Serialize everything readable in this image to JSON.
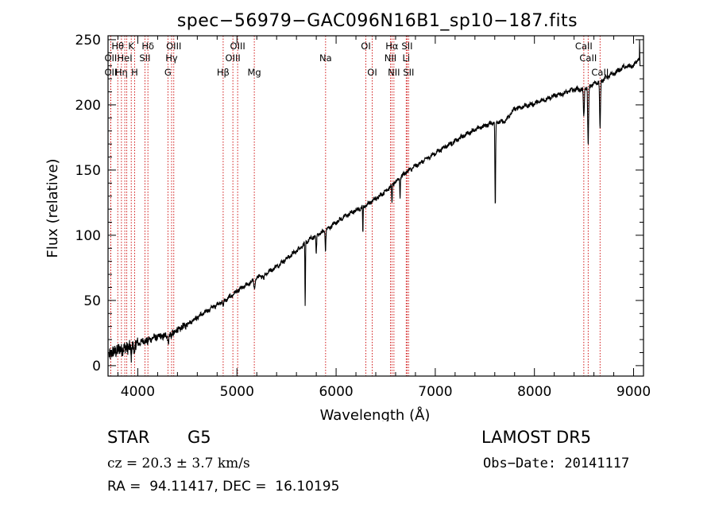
{
  "chart_data": {
    "type": "line",
    "title": "spec−56979−GAC096N16B1_sp10−187.fits",
    "xlabel": "Wavelength (Å)",
    "ylabel": "Flux (relative)",
    "xlim": [
      3700,
      9100
    ],
    "ylim": [
      -8,
      253
    ],
    "x_ticks": [
      4000,
      5000,
      6000,
      7000,
      8000,
      9000
    ],
    "y_ticks": [
      0,
      50,
      100,
      150,
      200,
      250
    ],
    "grid": false,
    "series": [
      {
        "color": "#000000",
        "continuum": [
          [
            3700,
            8
          ],
          [
            3800,
            12
          ],
          [
            3900,
            14
          ],
          [
            4000,
            17
          ],
          [
            4100,
            20
          ],
          [
            4200,
            22
          ],
          [
            4300,
            23
          ],
          [
            4400,
            27
          ],
          [
            4500,
            32
          ],
          [
            4600,
            37
          ],
          [
            4700,
            42
          ],
          [
            4800,
            47
          ],
          [
            4900,
            51
          ],
          [
            5000,
            57
          ],
          [
            5100,
            62
          ],
          [
            5200,
            67
          ],
          [
            5300,
            71
          ],
          [
            5400,
            76
          ],
          [
            5500,
            82
          ],
          [
            5600,
            88
          ],
          [
            5700,
            95
          ],
          [
            5800,
            100
          ],
          [
            5900,
            104
          ],
          [
            6000,
            110
          ],
          [
            6100,
            115
          ],
          [
            6200,
            119
          ],
          [
            6300,
            123
          ],
          [
            6400,
            128
          ],
          [
            6500,
            134
          ],
          [
            6600,
            141
          ],
          [
            6700,
            148
          ],
          [
            6800,
            153
          ],
          [
            6900,
            158
          ],
          [
            7000,
            163
          ],
          [
            7100,
            168
          ],
          [
            7200,
            172
          ],
          [
            7300,
            177
          ],
          [
            7400,
            181
          ],
          [
            7500,
            184
          ],
          [
            7600,
            187
          ],
          [
            7700,
            187
          ],
          [
            7800,
            197
          ],
          [
            7900,
            199
          ],
          [
            8000,
            201
          ],
          [
            8100,
            204
          ],
          [
            8200,
            207
          ],
          [
            8300,
            209
          ],
          [
            8400,
            212
          ],
          [
            8500,
            212
          ],
          [
            8600,
            216
          ],
          [
            8700,
            220
          ],
          [
            8800,
            224
          ],
          [
            8900,
            229
          ],
          [
            9000,
            230
          ],
          [
            9060,
            236
          ]
        ],
        "absorption_lines": [
          {
            "x": 3933,
            "depth": 10,
            "width": 8
          },
          {
            "x": 3968,
            "depth": 9,
            "width": 8
          },
          {
            "x": 4101,
            "depth": 4,
            "width": 8
          },
          {
            "x": 4307,
            "depth": 5,
            "width": 10
          },
          {
            "x": 4340,
            "depth": 4,
            "width": 8
          },
          {
            "x": 4861,
            "depth": 5,
            "width": 8
          },
          {
            "x": 5175,
            "depth": 7,
            "width": 12
          },
          {
            "x": 5270,
            "depth": 4,
            "width": 10
          },
          {
            "x": 5688,
            "depth": 50,
            "width": 6
          },
          {
            "x": 5800,
            "depth": 14,
            "width": 8
          },
          {
            "x": 5893,
            "depth": 15,
            "width": 8
          },
          {
            "x": 6270,
            "depth": 20,
            "width": 6
          },
          {
            "x": 6563,
            "depth": 14,
            "width": 8
          },
          {
            "x": 6645,
            "depth": 15,
            "width": 6
          },
          {
            "x": 7605,
            "depth": 65,
            "width": 8
          },
          {
            "x": 8498,
            "depth": 22,
            "width": 10
          },
          {
            "x": 8542,
            "depth": 45,
            "width": 10
          },
          {
            "x": 8662,
            "depth": 38,
            "width": 10
          }
        ]
      }
    ],
    "line_markers": [
      {
        "x": 3727,
        "label": "OII",
        "row": 1
      },
      {
        "x": 3727,
        "label": "OII",
        "row": 2
      },
      {
        "x": 3798,
        "label": "Hθ",
        "row": 0
      },
      {
        "x": 3835,
        "label": "Hη",
        "row": 2
      },
      {
        "x": 3869,
        "label": "HeI",
        "row": 1
      },
      {
        "x": 3889,
        "label": "",
        "row": 0
      },
      {
        "x": 3934,
        "label": "K",
        "row": 0
      },
      {
        "x": 3968,
        "label": "H",
        "row": 2
      },
      {
        "x": 4072,
        "label": "SII",
        "row": 1
      },
      {
        "x": 4102,
        "label": "Hδ",
        "row": 0
      },
      {
        "x": 4304,
        "label": "G",
        "row": 2
      },
      {
        "x": 4341,
        "label": "Hγ",
        "row": 1
      },
      {
        "x": 4363,
        "label": "OIII",
        "row": 0
      },
      {
        "x": 4861,
        "label": "Hβ",
        "row": 2
      },
      {
        "x": 4959,
        "label": "OIII",
        "row": 1
      },
      {
        "x": 5007,
        "label": "OIII",
        "row": 0
      },
      {
        "x": 5175,
        "label": "Mg",
        "row": 2
      },
      {
        "x": 5894,
        "label": "Na",
        "row": 1
      },
      {
        "x": 6300,
        "label": "OI",
        "row": 0
      },
      {
        "x": 6364,
        "label": "OI",
        "row": 2
      },
      {
        "x": 6548,
        "label": "NII",
        "row": 1
      },
      {
        "x": 6563,
        "label": "Hα",
        "row": 0
      },
      {
        "x": 6583,
        "label": "NII",
        "row": 2
      },
      {
        "x": 6707,
        "label": "Li",
        "row": 1
      },
      {
        "x": 6716,
        "label": "SII",
        "row": 0
      },
      {
        "x": 6731,
        "label": "SII",
        "row": 2
      },
      {
        "x": 8498,
        "label": "CaII",
        "row": 0
      },
      {
        "x": 8542,
        "label": "CaII",
        "row": 1
      },
      {
        "x": 8662,
        "label": "CaII",
        "row": 2
      }
    ],
    "marker_color": "#cc0000"
  },
  "info": {
    "object_type": "STAR",
    "subclass": "G5",
    "survey": "LAMOST DR5",
    "redshift_line": "cz = 20.3 ± 3.7 km/s",
    "obs_date": "Obs−Date: 20141117",
    "radec": "RA =  94.11417, DEC =  16.10195"
  }
}
